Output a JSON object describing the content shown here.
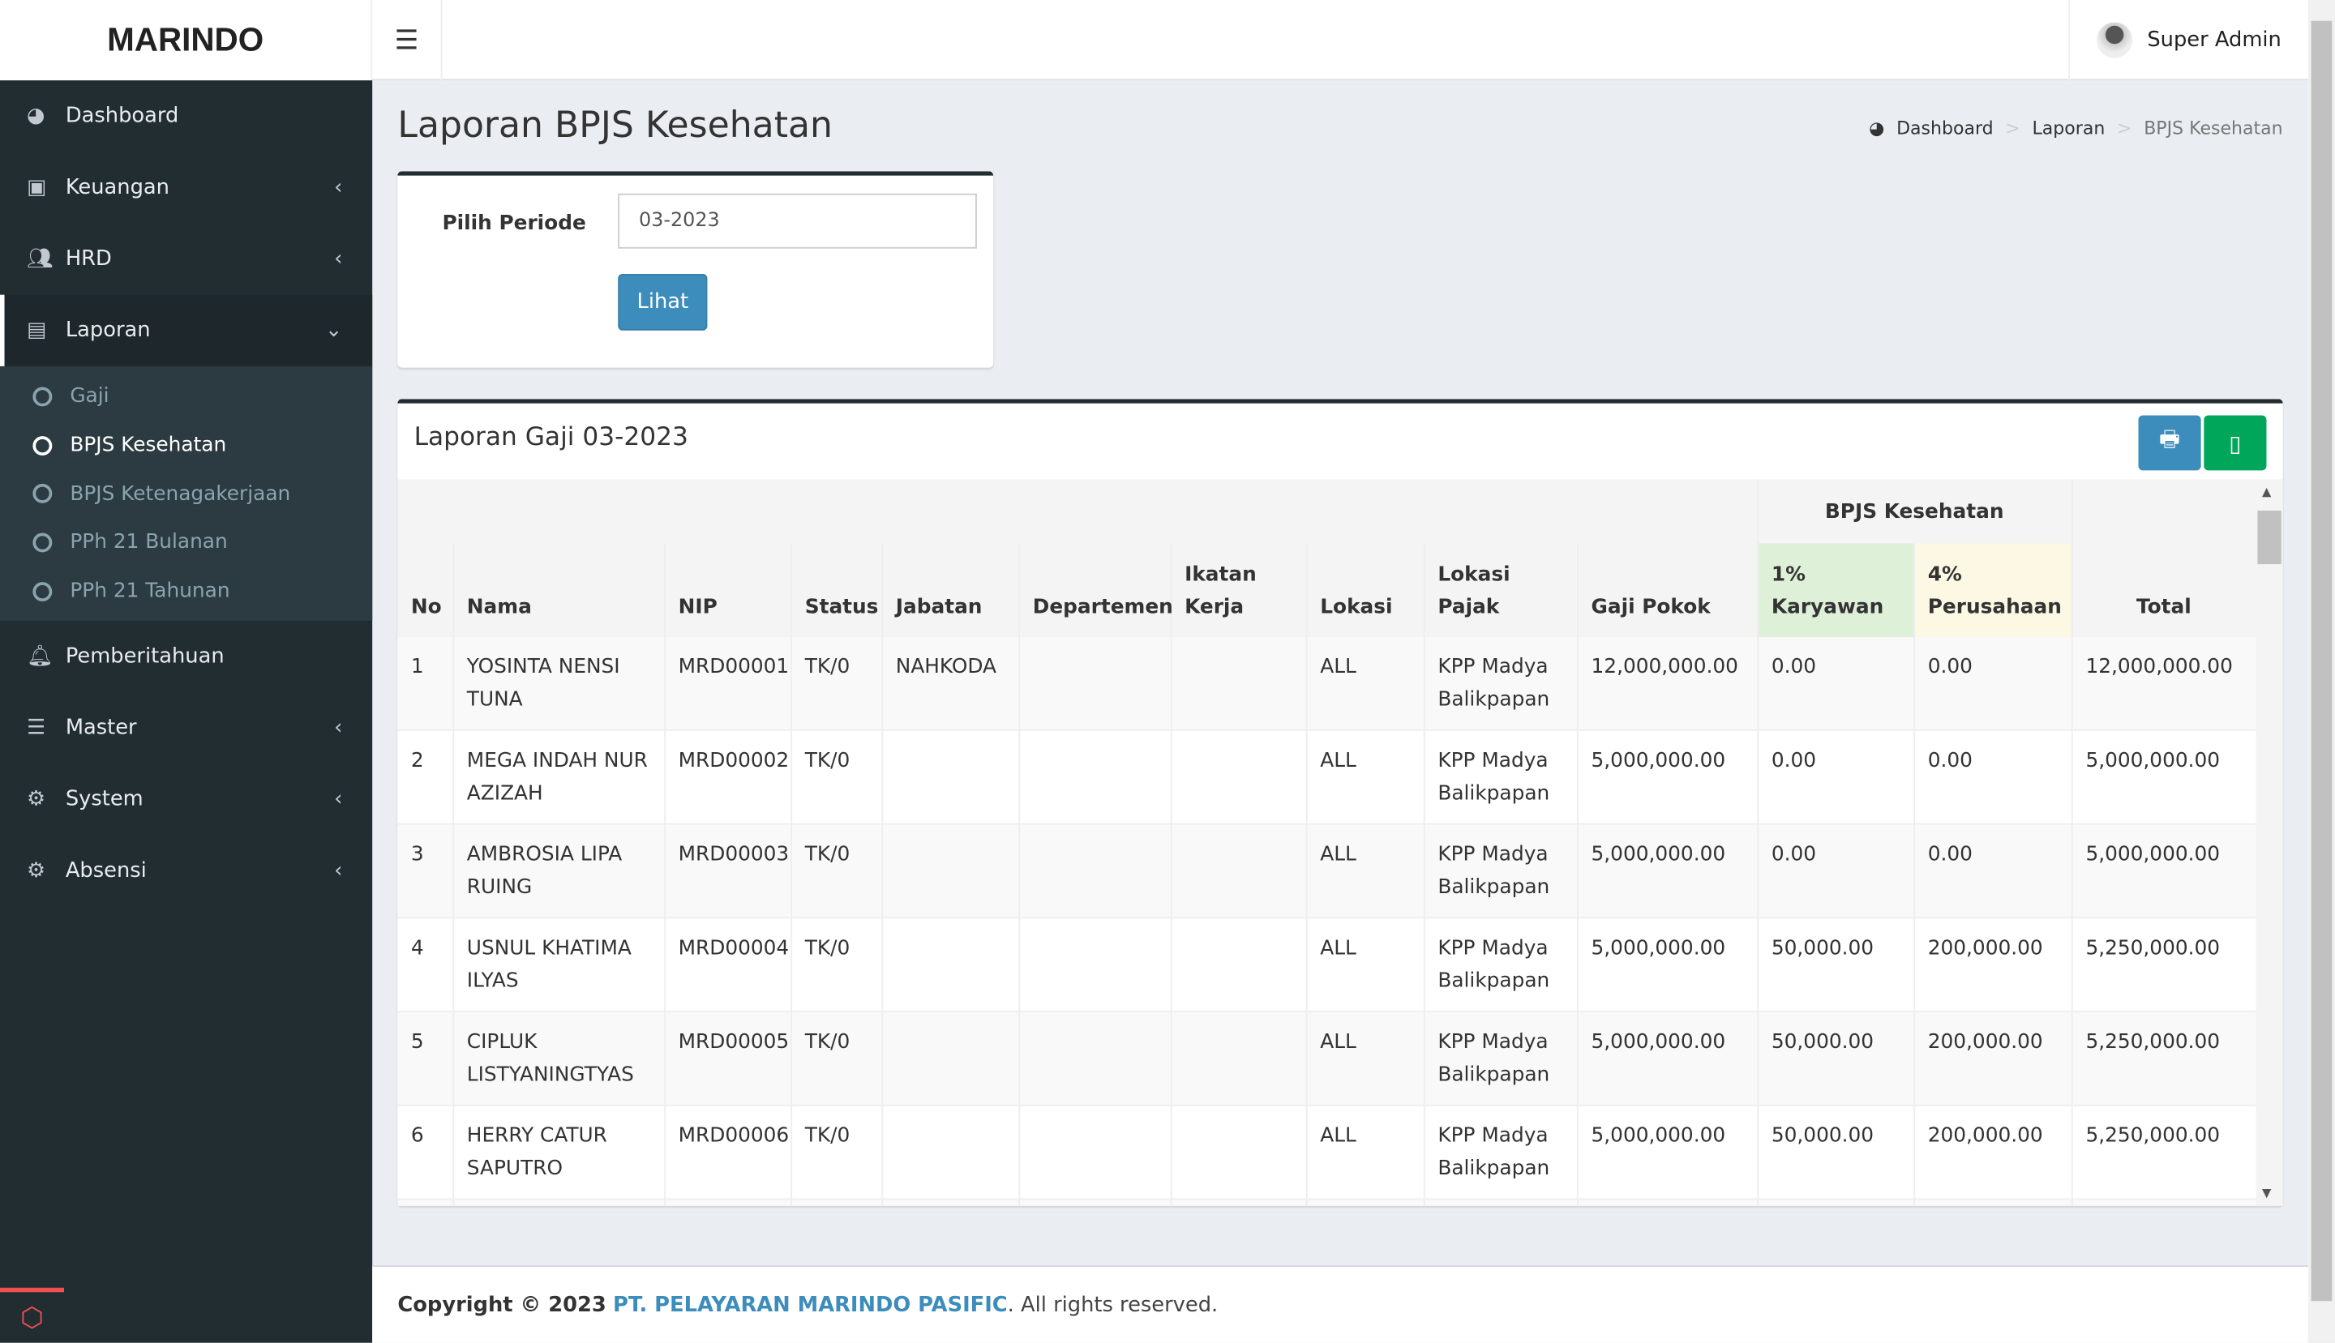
{
  "app": {
    "brand": "MARINDO",
    "user": "Super Admin"
  },
  "sidebar": {
    "items": [
      {
        "label": "Dashboard",
        "icon": "dashboard-icon"
      },
      {
        "label": "Keuangan",
        "icon": "money-icon"
      },
      {
        "label": "HRD",
        "icon": "users-icon"
      },
      {
        "label": "Laporan",
        "icon": "file-icon"
      },
      {
        "label": "Pemberitahuan",
        "icon": "bell-icon"
      },
      {
        "label": "Master",
        "icon": "list-icon"
      },
      {
        "label": "System",
        "icon": "gear-icon"
      },
      {
        "label": "Absensi",
        "icon": "gear-icon"
      }
    ],
    "laporan_sub": [
      "Gaji",
      "BPJS Kesehatan",
      "BPJS Ketenagakerjaan",
      "PPh 21 Bulanan",
      "PPh 21 Tahunan"
    ]
  },
  "page": {
    "title": "Laporan BPJS Kesehatan",
    "breadcrumb": [
      "Dashboard",
      "Laporan",
      "BPJS Kesehatan"
    ]
  },
  "filter": {
    "label": "Pilih Periode",
    "value": "03-2023",
    "button": "Lihat"
  },
  "report": {
    "title": "Laporan Gaji 03-2023",
    "group_header": "BPJS Kesehatan",
    "columns": [
      "No",
      "Nama",
      "NIP",
      "Status",
      "Jabatan",
      "Departemen",
      "Ikatan Kerja",
      "Lokasi",
      "Lokasi Pajak",
      "Gaji Pokok",
      "1% Karyawan",
      "4% Perusahaan",
      "Total"
    ],
    "rows": [
      [
        "1",
        "YOSINTA NENSI TUNA",
        "MRD00001",
        "TK/0",
        "NAHKODA",
        "",
        "",
        "ALL",
        "KPP Madya Balikpapan",
        "12,000,000.00",
        "0.00",
        "0.00",
        "12,000,000.00"
      ],
      [
        "2",
        "MEGA INDAH NUR AZIZAH",
        "MRD00002",
        "TK/0",
        "",
        "",
        "",
        "ALL",
        "KPP Madya Balikpapan",
        "5,000,000.00",
        "0.00",
        "0.00",
        "5,000,000.00"
      ],
      [
        "3",
        "AMBROSIA LIPA RUING",
        "MRD00003",
        "TK/0",
        "",
        "",
        "",
        "ALL",
        "KPP Madya Balikpapan",
        "5,000,000.00",
        "0.00",
        "0.00",
        "5,000,000.00"
      ],
      [
        "4",
        "USNUL KHATIMA ILYAS",
        "MRD00004",
        "TK/0",
        "",
        "",
        "",
        "ALL",
        "KPP Madya Balikpapan",
        "5,000,000.00",
        "50,000.00",
        "200,000.00",
        "5,250,000.00"
      ],
      [
        "5",
        "CIPLUK LISTYANINGTYAS",
        "MRD00005",
        "TK/0",
        "",
        "",
        "",
        "ALL",
        "KPP Madya Balikpapan",
        "5,000,000.00",
        "50,000.00",
        "200,000.00",
        "5,250,000.00"
      ],
      [
        "6",
        "HERRY CATUR SAPUTRO",
        "MRD00006",
        "TK/0",
        "",
        "",
        "",
        "ALL",
        "KPP Madya Balikpapan",
        "5,000,000.00",
        "50,000.00",
        "200,000.00",
        "5,250,000.00"
      ]
    ]
  },
  "footer": {
    "prefix": "Copyright © 2023",
    "company": "PT. PELAYARAN MARINDO PASIFIC",
    "suffix": ". All rights reserved."
  },
  "colors": {
    "sidebar": "#222d32",
    "primary": "#3c8dbc",
    "success": "#00a65a",
    "karyawan_bg": "#dff0d8",
    "perusahaan_bg": "#fcf8e3"
  }
}
